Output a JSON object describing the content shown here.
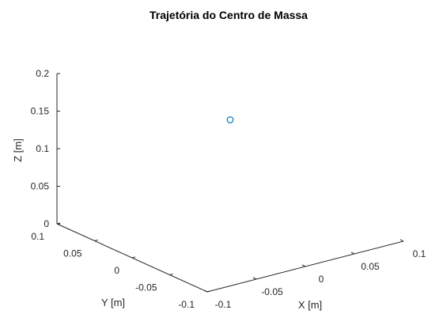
{
  "chart_data": {
    "type": "scatter",
    "title": "Trajetória do Centro de Massa",
    "xlabel": "X [m]",
    "ylabel": "Y [m]",
    "zlabel": "Z [m]",
    "xlim": [
      -0.1,
      0.1
    ],
    "ylim": [
      -0.1,
      0.1
    ],
    "zlim": [
      0,
      0.2
    ],
    "x_ticks": [
      "-0.1",
      "-0.05",
      "0",
      "0.05",
      "0.1"
    ],
    "y_ticks": [
      "-0.1",
      "-0.05",
      "0",
      "0.05",
      "0.1"
    ],
    "z_ticks": [
      "0",
      "0.05",
      "0.1",
      "0.15",
      "0.2"
    ],
    "grid": false,
    "marker_color": "#0072BD",
    "points": [
      {
        "x": 0.0,
        "y": 0.0,
        "z": 0.15
      }
    ]
  }
}
